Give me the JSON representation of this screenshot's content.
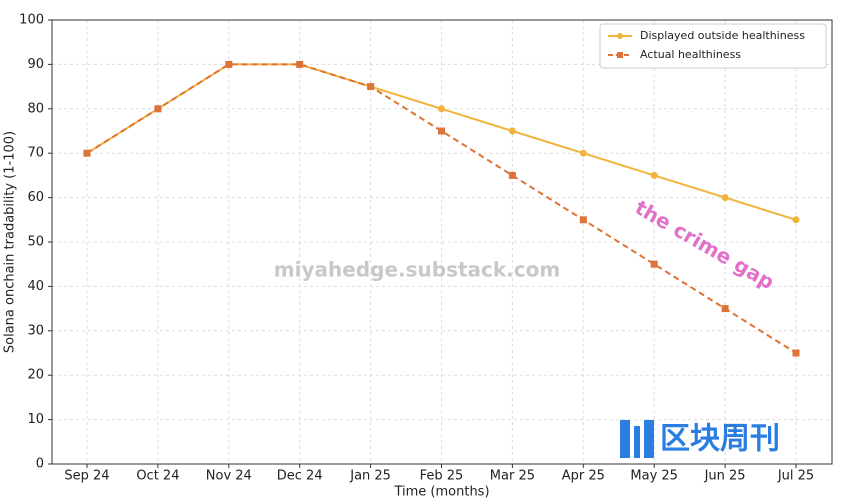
{
  "chart_data": {
    "type": "line",
    "y_label": "Solana onchain tradability (1-100)",
    "x_label": "Time (months)",
    "categories": [
      "Sep 24",
      "Oct 24",
      "Nov 24",
      "Dec 24",
      "Jan 25",
      "Feb 25",
      "Mar 25",
      "Apr 25",
      "May 25",
      "Jun 25",
      "Jul 25"
    ],
    "series": [
      {
        "name": "Displayed outside healthiness",
        "color": "#f0b43c",
        "marker": "circle",
        "dashed": false,
        "values": [
          70,
          80,
          90,
          90,
          85,
          80,
          75,
          70,
          65,
          60,
          55
        ]
      },
      {
        "name": "Actual healthiness",
        "color": "#dd7338",
        "marker": "square",
        "dashed": true,
        "values": [
          70,
          80,
          90,
          90,
          85,
          75,
          65,
          55,
          45,
          35,
          25
        ]
      }
    ],
    "ylim": [
      0,
      100
    ],
    "yticks": [
      0,
      10,
      20,
      30,
      40,
      50,
      60,
      70,
      80,
      90,
      100
    ],
    "grid": true,
    "legend": "upper right",
    "annotations": [
      "miyahedge.substack.com",
      "the crime gap",
      "区块周刊"
    ]
  }
}
